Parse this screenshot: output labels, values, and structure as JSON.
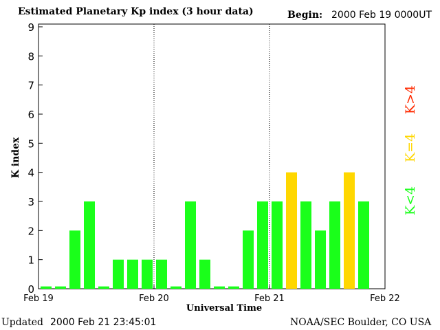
{
  "header": {
    "title": "Estimated Planetary Kp index (3 hour data)",
    "begin_label": "Begin:",
    "begin_value": "2000 Feb 19 0000UT"
  },
  "footer": {
    "updated_label": "Updated",
    "updated_value": "2000 Feb 21 23:45:01",
    "credit": "NOAA/SEC Boulder, CO USA"
  },
  "legend": [
    {
      "label": "K>4",
      "color": "#ff2a00"
    },
    {
      "label": "K=4",
      "color": "#ffd700"
    },
    {
      "label": "K<4",
      "color": "#1aff1a"
    }
  ],
  "colors": {
    "below_4": "#1aff1a",
    "equal_4": "#ffd700",
    "above_4": "#ff2a00"
  },
  "chart_data": {
    "type": "bar",
    "title": "Estimated Planetary Kp index (3 hour data)",
    "xlabel": "Universal Time",
    "ylabel": "K index",
    "ylim": [
      0,
      9
    ],
    "yticks": [
      "0",
      "1",
      "2",
      "3",
      "4",
      "5",
      "6",
      "7",
      "8",
      "9"
    ],
    "xticks": [
      "Feb 19",
      "Feb 20",
      "Feb 21",
      "Feb 22"
    ],
    "day_dividers": [
      "Feb 20",
      "Feb 21"
    ],
    "interval_hours": 3,
    "values": [
      0,
      0,
      2,
      3,
      0,
      1,
      1,
      1,
      1,
      0,
      3,
      1,
      0,
      0,
      2,
      3,
      3,
      4,
      3,
      2,
      3,
      4,
      3
    ]
  }
}
